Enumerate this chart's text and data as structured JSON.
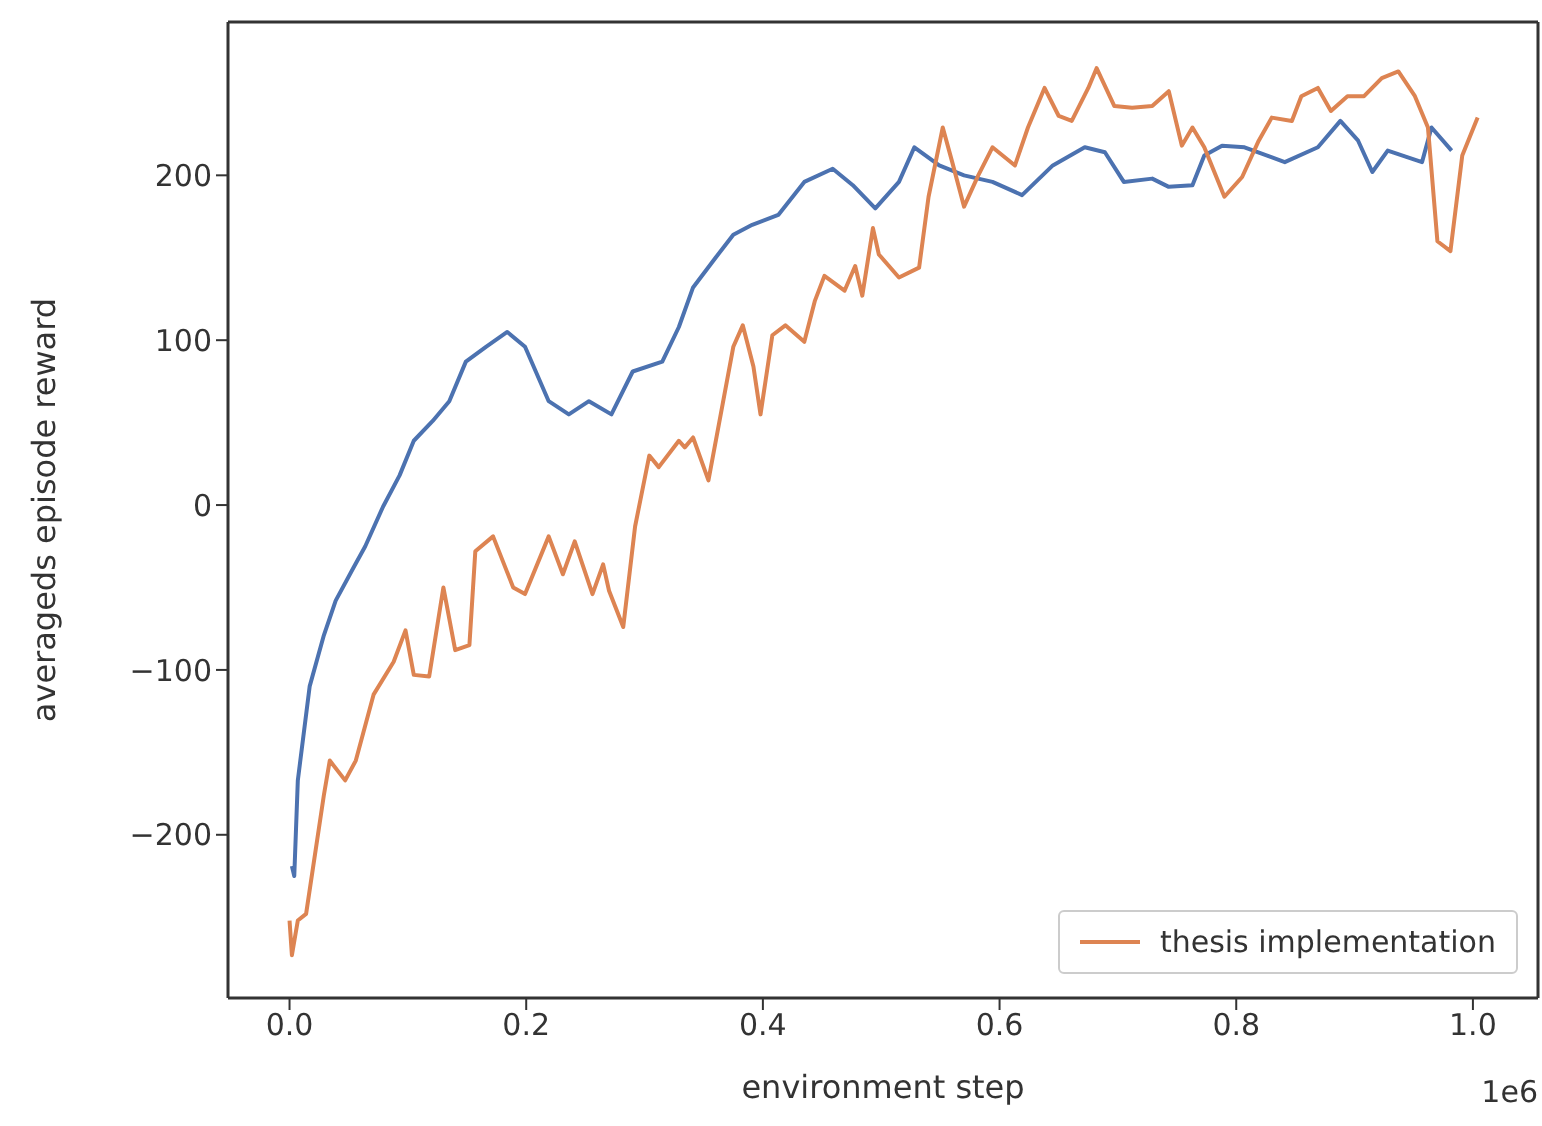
{
  "chart_data": {
    "type": "line",
    "xlabel": "environment step",
    "ylabel": "averageds episode reward",
    "annotations": [
      "1e6"
    ],
    "xlim": [
      -0.052,
      1.055
    ],
    "ylim": [
      -299,
      293
    ],
    "xticks": [
      {
        "value": 0,
        "label": "0.0"
      },
      {
        "value": 0.2,
        "label": "0.2"
      },
      {
        "value": 0.4,
        "label": "0.4"
      },
      {
        "value": 0.6,
        "label": "0.6"
      },
      {
        "value": 0.8,
        "label": "0.8"
      },
      {
        "value": 1,
        "label": "1.0"
      }
    ],
    "yticks": [
      -200,
      -100,
      0,
      100,
      200
    ],
    "legend": "bottom right",
    "marker": "none",
    "line_style": "solid",
    "series": [
      {
        "color": "#4c72b0",
        "x": [
          0.002,
          0.004,
          0.007,
          0.017,
          0.029,
          0.039,
          0.054,
          0.064,
          0.079,
          0.093,
          0.105,
          0.121,
          0.135,
          0.149,
          0.166,
          0.184,
          0.199,
          0.219,
          0.236,
          0.253,
          0.272,
          0.29,
          0.315,
          0.329,
          0.341,
          0.36,
          0.375,
          0.391,
          0.413,
          0.435,
          0.459,
          0.476,
          0.495,
          0.515,
          0.528,
          0.549,
          0.57,
          0.594,
          0.619,
          0.645,
          0.672,
          0.689,
          0.705,
          0.729,
          0.743,
          0.763,
          0.773,
          0.788,
          0.807,
          0.841,
          0.869,
          0.888,
          0.903,
          0.915,
          0.928,
          0.957,
          0.965,
          0.982
        ],
        "values": [
          -219,
          -225,
          -167,
          -110,
          -79,
          -58,
          -38,
          -25,
          -1,
          18,
          39,
          51,
          63,
          87,
          96,
          105,
          96,
          63,
          55,
          63,
          55,
          81,
          87,
          108,
          132,
          150,
          164,
          170,
          176,
          196,
          204,
          194,
          180,
          196,
          217,
          206,
          200,
          196,
          188,
          206,
          217,
          214,
          196,
          198,
          193,
          194,
          212,
          218,
          217,
          208,
          217,
          233,
          221,
          202,
          215,
          208,
          229,
          215
        ]
      },
      {
        "name": "thesis implementation",
        "color": "#dd8452",
        "x": [
          0.0,
          0.002,
          0.007,
          0.014,
          0.029,
          0.034,
          0.047,
          0.056,
          0.071,
          0.088,
          0.098,
          0.105,
          0.118,
          0.13,
          0.14,
          0.152,
          0.157,
          0.172,
          0.189,
          0.199,
          0.219,
          0.231,
          0.241,
          0.256,
          0.265,
          0.27,
          0.282,
          0.292,
          0.304,
          0.312,
          0.329,
          0.334,
          0.341,
          0.354,
          0.375,
          0.383,
          0.392,
          0.398,
          0.408,
          0.419,
          0.435,
          0.444,
          0.452,
          0.469,
          0.478,
          0.484,
          0.493,
          0.498,
          0.515,
          0.532,
          0.54,
          0.552,
          0.56,
          0.57,
          0.582,
          0.594,
          0.613,
          0.624,
          0.638,
          0.65,
          0.661,
          0.675,
          0.682,
          0.697,
          0.712,
          0.729,
          0.743,
          0.754,
          0.763,
          0.773,
          0.79,
          0.805,
          0.819,
          0.83,
          0.847,
          0.855,
          0.869,
          0.88,
          0.894,
          0.908,
          0.923,
          0.937,
          0.951,
          0.962,
          0.97,
          0.981,
          0.991,
          1.004
        ],
        "values": [
          -252,
          -273,
          -252,
          -248,
          -176,
          -155,
          -167,
          -155,
          -115,
          -95,
          -76,
          -103,
          -104,
          -50,
          -88,
          -85,
          -28,
          -19,
          -50,
          -54,
          -19,
          -42,
          -22,
          -54,
          -36,
          -52,
          -74,
          -13,
          30,
          23,
          39,
          35,
          41,
          15,
          96,
          109,
          84,
          55,
          103,
          109,
          99,
          124,
          139,
          130,
          145,
          127,
          168,
          152,
          138,
          144,
          187,
          229,
          208,
          181,
          200,
          217,
          206,
          229,
          253,
          236,
          233,
          253,
          265,
          242,
          241,
          242,
          251,
          218,
          229,
          217,
          187,
          199,
          221,
          235,
          233,
          248,
          253,
          239,
          248,
          248,
          259,
          263,
          248,
          229,
          160,
          154,
          212,
          235
        ]
      }
    ]
  }
}
